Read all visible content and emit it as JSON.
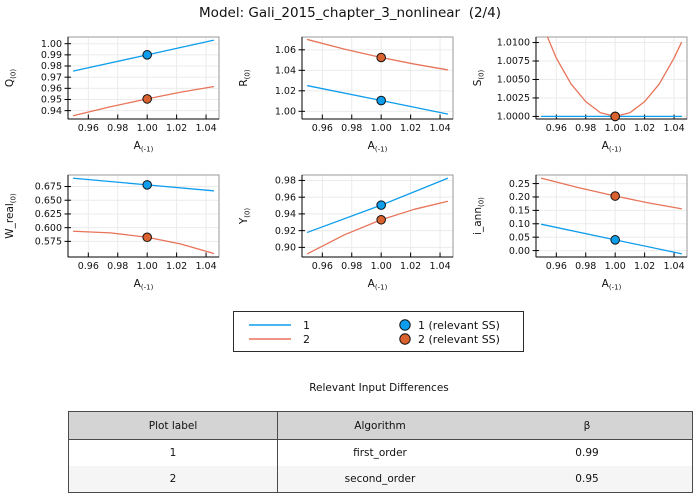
{
  "title": "Model: Gali_2015_chapter_3_nonlinear  (2/4)",
  "colors": {
    "series1": "#0D9DED",
    "series2": "#E8745A",
    "marker1": "#0D9DED",
    "marker2": "#D9622F",
    "marker_edge": "#111111",
    "grid": "#EBEBEB",
    "frame": "#9A9A9A",
    "axis": "#000000"
  },
  "chart_data": [
    {
      "type": "line",
      "ylabel": {
        "main": "Q",
        "sub": "(0)"
      },
      "xlabel": {
        "main": "A",
        "sub": "(-1)"
      },
      "xlim": [
        0.9462,
        1.0488
      ],
      "ylim": [
        0.9325,
        1.006
      ],
      "xticks": {
        "values": [
          0.96,
          0.98,
          1.0,
          1.02,
          1.04
        ],
        "labels": [
          "0.96",
          "0.98",
          "1.00",
          "1.02",
          "1.04"
        ]
      },
      "yticks": {
        "values": [
          0.94,
          0.95,
          0.96,
          0.97,
          0.98,
          0.99,
          1.0
        ],
        "labels": [
          "0.94",
          "0.95",
          "0.96",
          "0.97",
          "0.98",
          "0.99",
          "1.00"
        ]
      },
      "series": [
        {
          "name": "1",
          "color_key": "series1",
          "x": [
            0.95,
            1.0,
            1.045
          ],
          "y": [
            0.9755,
            0.99,
            1.0031
          ]
        },
        {
          "name": "2",
          "color_key": "series2",
          "x": [
            0.95,
            0.975,
            1.0,
            1.0225,
            1.045
          ],
          "y": [
            0.9355,
            0.9435,
            0.9505,
            0.9565,
            0.9615
          ]
        }
      ],
      "ss_points": [
        {
          "series": "1",
          "color_key": "marker1",
          "x": 1.0,
          "y": 0.99
        },
        {
          "series": "2",
          "color_key": "marker2",
          "x": 1.0,
          "y": 0.9505
        }
      ]
    },
    {
      "type": "line",
      "ylabel": {
        "main": "R",
        "sub": "(0)"
      },
      "xlabel": {
        "main": "A",
        "sub": "(-1)"
      },
      "xlim": [
        0.9462,
        1.0488
      ],
      "ylim": [
        0.9925,
        1.0725
      ],
      "xticks": {
        "values": [
          0.96,
          0.98,
          1.0,
          1.02,
          1.04
        ],
        "labels": [
          "0.96",
          "0.98",
          "1.00",
          "1.02",
          "1.04"
        ]
      },
      "yticks": {
        "values": [
          1.0,
          1.02,
          1.04,
          1.06
        ],
        "labels": [
          "1.00",
          "1.02",
          "1.04",
          "1.06"
        ]
      },
      "series": [
        {
          "name": "1",
          "color_key": "series1",
          "x": [
            0.95,
            1.0,
            1.045
          ],
          "y": [
            1.025,
            1.0105,
            0.9974
          ]
        },
        {
          "name": "2",
          "color_key": "series2",
          "x": [
            0.95,
            0.975,
            1.0,
            1.0225,
            1.045
          ],
          "y": [
            1.07,
            1.0607,
            1.0525,
            1.0461,
            1.0405
          ]
        }
      ],
      "ss_points": [
        {
          "series": "1",
          "color_key": "marker1",
          "x": 1.0,
          "y": 1.0105
        },
        {
          "series": "2",
          "color_key": "marker2",
          "x": 1.0,
          "y": 1.0525
        }
      ]
    },
    {
      "type": "line",
      "ylabel": {
        "main": "S",
        "sub": "(0)"
      },
      "xlabel": {
        "main": "A",
        "sub": "(-1)"
      },
      "xlim": [
        0.9462,
        1.0488
      ],
      "ylim": [
        0.99965,
        1.01075
      ],
      "xticks": {
        "values": [
          0.96,
          0.98,
          1.0,
          1.02,
          1.04
        ],
        "labels": [
          "0.96",
          "0.98",
          "1.00",
          "1.02",
          "1.04"
        ]
      },
      "yticks": {
        "values": [
          1.0,
          1.0025,
          1.005,
          1.0075,
          1.01
        ],
        "labels": [
          "1.0000",
          "1.0025",
          "1.0050",
          "1.0075",
          "1.0100"
        ]
      },
      "series": [
        {
          "name": "1",
          "color_key": "series1",
          "x": [
            0.95,
            1.045
          ],
          "y": [
            1.0,
            1.0
          ]
        },
        {
          "name": "2",
          "color_key": "series2",
          "x": [
            0.954,
            0.96,
            0.97,
            0.98,
            0.99,
            1.0,
            1.01,
            1.02,
            1.03,
            1.04,
            1.045
          ],
          "y": [
            1.01075,
            1.0079,
            1.0044,
            1.002,
            1.0005,
            1.0,
            1.0005,
            1.002,
            1.0044,
            1.0079,
            1.01
          ]
        }
      ],
      "ss_points": [
        {
          "series": "1",
          "color_key": "marker1",
          "x": 1.0,
          "y": 1.0
        },
        {
          "series": "2",
          "color_key": "marker2",
          "x": 1.0,
          "y": 1.0
        }
      ]
    },
    {
      "type": "line",
      "ylabel": {
        "main": "W_real",
        "sub": "(0)"
      },
      "xlabel": {
        "main": "A",
        "sub": "(-1)"
      },
      "xlim": [
        0.9462,
        1.0488
      ],
      "ylim": [
        0.5465,
        0.696
      ],
      "xticks": {
        "values": [
          0.96,
          0.98,
          1.0,
          1.02,
          1.04
        ],
        "labels": [
          "0.96",
          "0.98",
          "1.00",
          "1.02",
          "1.04"
        ]
      },
      "yticks": {
        "values": [
          0.575,
          0.6,
          0.625,
          0.65,
          0.675
        ],
        "labels": [
          "0.575",
          "0.600",
          "0.625",
          "0.650",
          "0.675"
        ]
      },
      "series": [
        {
          "name": "1",
          "color_key": "series1",
          "x": [
            0.95,
            1.0,
            1.045
          ],
          "y": [
            0.69,
            0.678,
            0.6672
          ]
        },
        {
          "name": "2",
          "color_key": "series2",
          "x": [
            0.95,
            0.975,
            1.0,
            1.0225,
            1.045
          ],
          "y": [
            0.5935,
            0.5905,
            0.5825,
            0.5705,
            0.553
          ]
        }
      ],
      "ss_points": [
        {
          "series": "1",
          "color_key": "marker1",
          "x": 1.0,
          "y": 0.678
        },
        {
          "series": "2",
          "color_key": "marker2",
          "x": 1.0,
          "y": 0.5825
        }
      ]
    },
    {
      "type": "line",
      "ylabel": {
        "main": "Y",
        "sub": "(0)"
      },
      "xlabel": {
        "main": "A",
        "sub": "(-1)"
      },
      "xlim": [
        0.9462,
        1.0488
      ],
      "ylim": [
        0.8885,
        0.9865
      ],
      "xticks": {
        "values": [
          0.96,
          0.98,
          1.0,
          1.02,
          1.04
        ],
        "labels": [
          "0.96",
          "0.98",
          "1.00",
          "1.02",
          "1.04"
        ]
      },
      "yticks": {
        "values": [
          0.9,
          0.92,
          0.94,
          0.96,
          0.98
        ],
        "labels": [
          "0.90",
          "0.92",
          "0.94",
          "0.96",
          "0.98"
        ]
      },
      "series": [
        {
          "name": "1",
          "color_key": "series1",
          "x": [
            0.95,
            1.0,
            1.045
          ],
          "y": [
            0.918,
            0.9505,
            0.9825
          ]
        },
        {
          "name": "2",
          "color_key": "series2",
          "x": [
            0.95,
            0.975,
            1.0,
            1.0225,
            1.045
          ],
          "y": [
            0.8925,
            0.915,
            0.933,
            0.9455,
            0.955
          ]
        }
      ],
      "ss_points": [
        {
          "series": "1",
          "color_key": "marker1",
          "x": 1.0,
          "y": 0.9505
        },
        {
          "series": "2",
          "color_key": "marker2",
          "x": 1.0,
          "y": 0.933
        }
      ]
    },
    {
      "type": "line",
      "ylabel": {
        "main": "i_ann",
        "sub": "(0)"
      },
      "xlabel": {
        "main": "A",
        "sub": "(-1)"
      },
      "xlim": [
        0.9462,
        1.0488
      ],
      "ylim": [
        -0.024,
        0.282
      ],
      "xticks": {
        "values": [
          0.96,
          0.98,
          1.0,
          1.02,
          1.04
        ],
        "labels": [
          "0.96",
          "0.98",
          "1.00",
          "1.02",
          "1.04"
        ]
      },
      "yticks": {
        "values": [
          0.0,
          0.05,
          0.1,
          0.15,
          0.2,
          0.25
        ],
        "labels": [
          "0.00",
          "0.05",
          "0.10",
          "0.15",
          "0.20",
          "0.25"
        ]
      },
      "series": [
        {
          "name": "1",
          "color_key": "series1",
          "x": [
            0.95,
            1.0,
            1.045
          ],
          "y": [
            0.098,
            0.04,
            -0.012
          ]
        },
        {
          "name": "2",
          "color_key": "series2",
          "x": [
            0.95,
            0.975,
            1.0,
            1.0225,
            1.045
          ],
          "y": [
            0.27,
            0.235,
            0.2035,
            0.178,
            0.156
          ]
        }
      ],
      "ss_points": [
        {
          "series": "1",
          "color_key": "marker1",
          "x": 1.0,
          "y": 0.04
        },
        {
          "series": "2",
          "color_key": "marker2",
          "x": 1.0,
          "y": 0.2035
        }
      ]
    }
  ],
  "legend": {
    "line_entries": [
      {
        "label": "1",
        "color_key": "series1"
      },
      {
        "label": "2",
        "color_key": "series2"
      }
    ],
    "marker_entries": [
      {
        "label": "1 (relevant SS)",
        "color_key": "marker1"
      },
      {
        "label": "2 (relevant SS)",
        "color_key": "marker2"
      }
    ]
  },
  "table": {
    "title": "Relevant Input Differences",
    "headers": [
      "Plot label",
      "Algorithm",
      "β"
    ],
    "rows": [
      [
        "1",
        "first_order",
        "0.99"
      ],
      [
        "2",
        "second_order",
        "0.95"
      ]
    ]
  }
}
